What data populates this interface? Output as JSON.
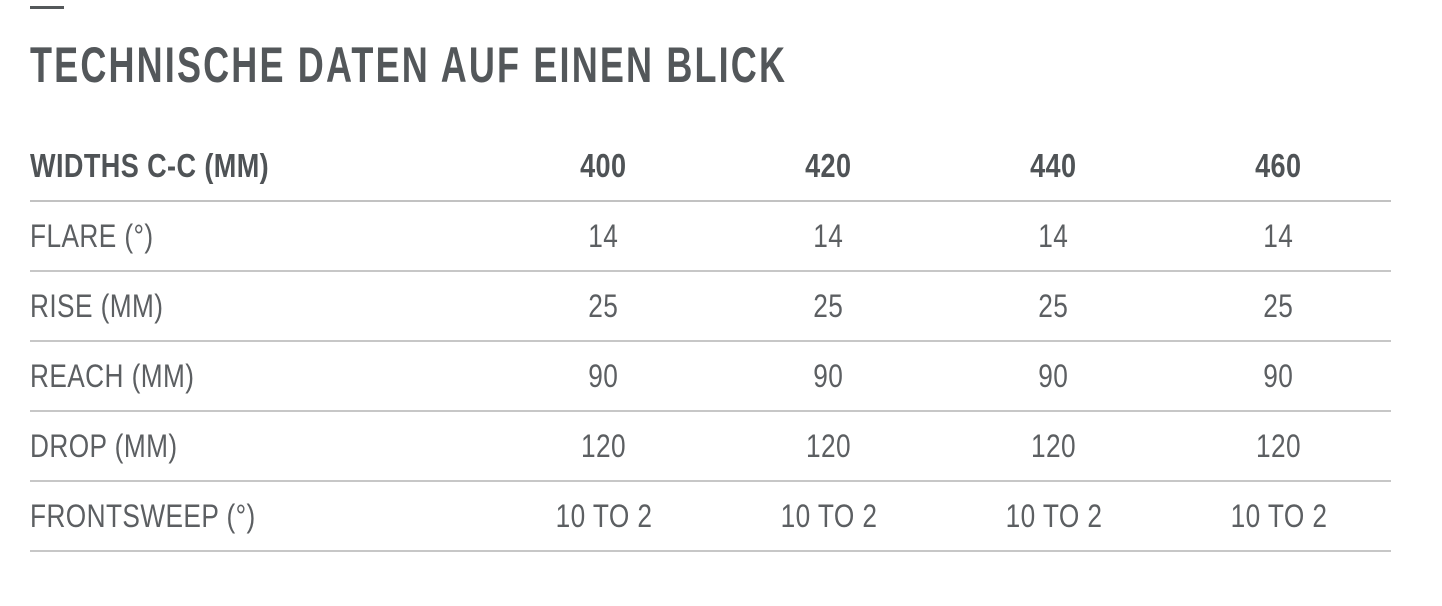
{
  "title": "TECHNISCHE DATEN AUF EINEN BLICK",
  "colors": {
    "heading_text": "#53575a",
    "body_text": "#5c5f62",
    "divider": "#c7c7c7",
    "background": "#ffffff"
  },
  "chart_data": {
    "type": "table",
    "title": "TECHNISCHE DATEN AUF EINEN BLICK",
    "columns": [
      "WIDTHS C-C (MM)",
      "400",
      "420",
      "440",
      "460"
    ],
    "rows": [
      [
        "FLARE (°)",
        "14",
        "14",
        "14",
        "14"
      ],
      [
        "RISE (MM)",
        "25",
        "25",
        "25",
        "25"
      ],
      [
        "REACH (MM)",
        "90",
        "90",
        "90",
        "90"
      ],
      [
        "DROP (MM)",
        "120",
        "120",
        "120",
        "120"
      ],
      [
        "FRONTSWEEP (°)",
        "10 TO 2",
        "10 TO 2",
        "10 TO 2",
        "10 TO 2"
      ]
    ]
  },
  "table": {
    "header": {
      "label": "WIDTHS C-C (MM)",
      "col1": "400",
      "col2": "420",
      "col3": "440",
      "col4": "460"
    },
    "rows": [
      {
        "label": "FLARE (°)",
        "v1": "14",
        "v2": "14",
        "v3": "14",
        "v4": "14"
      },
      {
        "label": "RISE (MM)",
        "v1": "25",
        "v2": "25",
        "v3": "25",
        "v4": "25"
      },
      {
        "label": "REACH (MM)",
        "v1": "90",
        "v2": "90",
        "v3": "90",
        "v4": "90"
      },
      {
        "label": "DROP (MM)",
        "v1": "120",
        "v2": "120",
        "v3": "120",
        "v4": "120"
      },
      {
        "label": "FRONTSWEEP (°)",
        "v1": "10 TO 2",
        "v2": "10 TO 2",
        "v3": "10 TO 2",
        "v4": "10 TO 2"
      }
    ]
  }
}
